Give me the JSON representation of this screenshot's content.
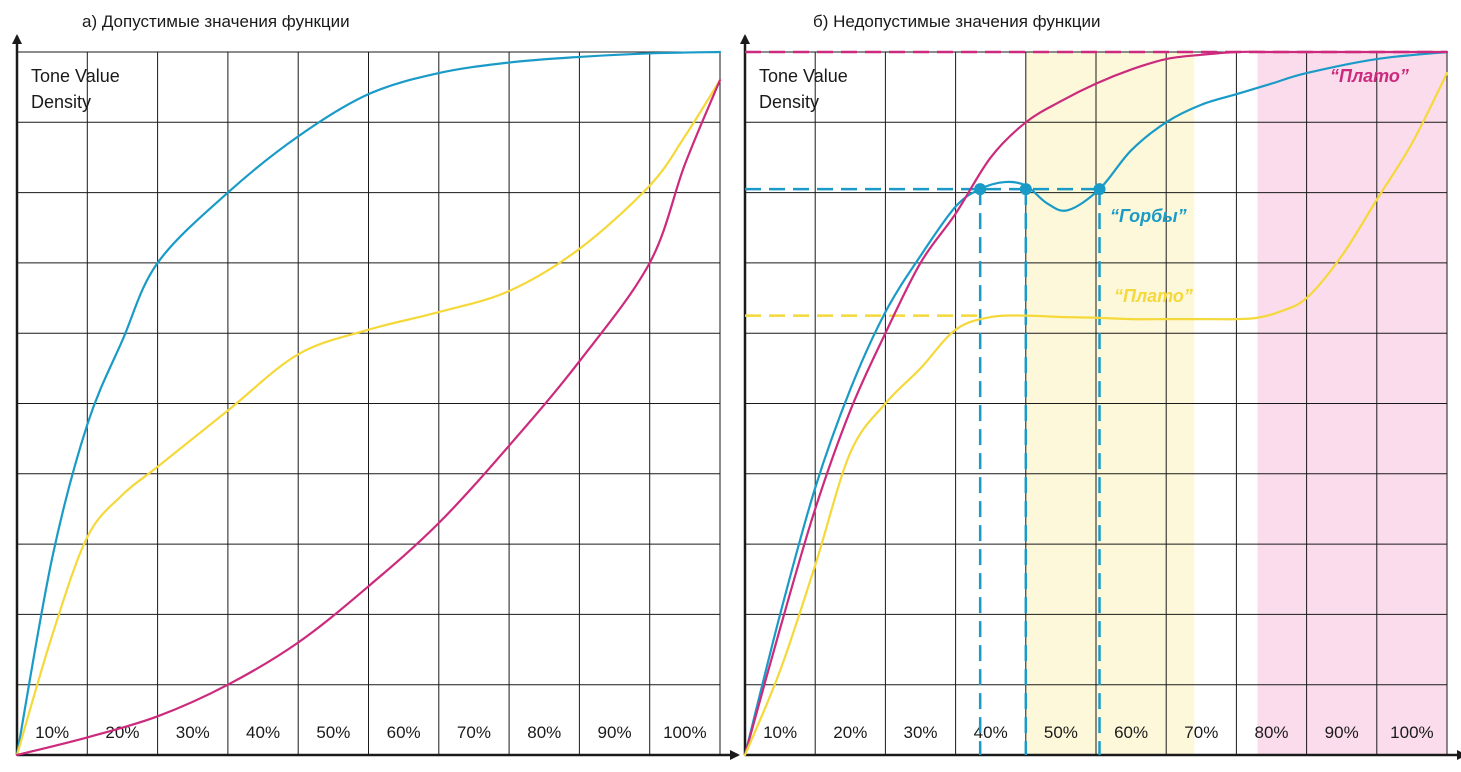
{
  "chart_data": [
    {
      "type": "line",
      "title": "а) Допустимые значения функции",
      "ylabel_lines": [
        "Tone Value",
        "Density"
      ],
      "x_tick_labels": [
        "10%",
        "20%",
        "30%",
        "40%",
        "50%",
        "60%",
        "70%",
        "80%",
        "90%",
        "100%"
      ],
      "xlim": [
        0,
        100
      ],
      "ylim": [
        0,
        100
      ],
      "grid": true,
      "series": [
        {
          "color": "#1a9bc7",
          "x": [
            0,
            5,
            10,
            15,
            20,
            30,
            40,
            50,
            60,
            70,
            80,
            90,
            100
          ],
          "y": [
            0,
            28,
            47,
            59,
            70,
            80,
            88,
            94,
            97,
            98.5,
            99.3,
            99.8,
            100
          ]
        },
        {
          "color": "#f5d83a",
          "x": [
            0,
            5,
            10,
            15,
            20,
            30,
            40,
            50,
            60,
            70,
            80,
            90,
            95,
            100
          ],
          "y": [
            0,
            17,
            31,
            37,
            41,
            49,
            57,
            60.5,
            63,
            66,
            72,
            81,
            88,
            96
          ]
        },
        {
          "color": "#cc2a7d",
          "x": [
            0,
            10,
            20,
            30,
            40,
            50,
            60,
            70,
            80,
            90,
            95,
            100
          ],
          "y": [
            0,
            2.5,
            5.5,
            10,
            16,
            24,
            33,
            44,
            56,
            70,
            84,
            96
          ]
        }
      ]
    },
    {
      "type": "line",
      "title": "б) Недопустимые значения функции",
      "ylabel_lines": [
        "Tone Value",
        "Density"
      ],
      "x_tick_labels": [
        "10%",
        "20%",
        "30%",
        "40%",
        "50%",
        "60%",
        "70%",
        "80%",
        "90%",
        "100%"
      ],
      "xlim": [
        0,
        100
      ],
      "ylim": [
        0,
        100
      ],
      "grid": true,
      "series": [
        {
          "color": "#1a9bc7",
          "x": [
            0,
            5,
            10,
            15,
            20,
            25,
            30,
            33.5,
            37,
            40,
            43,
            46,
            50.5,
            55,
            60,
            65,
            70,
            75,
            80,
            90,
            100
          ],
          "y": [
            0,
            20,
            38,
            52,
            63,
            71,
            78,
            80.5,
            81.5,
            81,
            78.5,
            77.5,
            80.5,
            86,
            90,
            92.5,
            94,
            95.5,
            97,
            99,
            100
          ]
        },
        {
          "color": "#cc2a7d",
          "x": [
            0,
            5,
            10,
            15,
            20,
            25,
            30,
            35,
            40,
            45,
            50,
            55,
            60,
            65,
            70,
            75,
            80,
            90,
            100
          ],
          "y": [
            0,
            18,
            35,
            49,
            60,
            70,
            77,
            85,
            90,
            93,
            95.5,
            97.5,
            99,
            99.6,
            100,
            100,
            100,
            100,
            100
          ]
        },
        {
          "color": "#f5d83a",
          "x": [
            0,
            5,
            10,
            15,
            20,
            25,
            30,
            35,
            40,
            45,
            50,
            55,
            60,
            65,
            70,
            73,
            76,
            80,
            85,
            90,
            95,
            100
          ],
          "y": [
            0,
            12,
            27,
            43,
            50,
            55,
            60.5,
            62.3,
            62.5,
            62.3,
            62.2,
            62,
            62,
            62,
            62,
            62.2,
            63,
            65,
            71,
            79,
            87,
            97
          ]
        }
      ],
      "annotations": [
        {
          "text": "“Плато”",
          "color": "#cc2a7d"
        },
        {
          "text": "“Горбы”",
          "color": "#1a9bc7"
        },
        {
          "text": "“Плато”",
          "color": "#f5d83a"
        }
      ],
      "reference_points": {
        "color": "#1a9bc7",
        "x": [
          33.5,
          40,
          50.5
        ],
        "y": 80.5
      },
      "reference_levels": {
        "cyan": 80.5,
        "yellow": 62.5,
        "magenta": 100
      },
      "shaded_ranges": [
        {
          "x": [
            40,
            64
          ],
          "color": "#fdf8d9"
        },
        {
          "x": [
            73,
            100
          ],
          "color": "#fadcec"
        }
      ]
    }
  ]
}
